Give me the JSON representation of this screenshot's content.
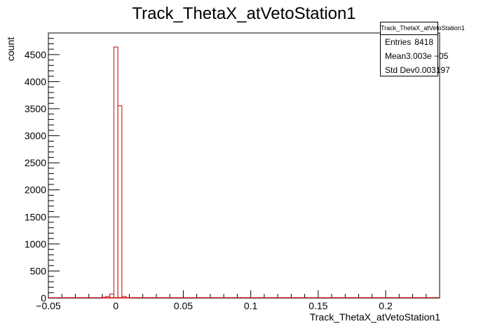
{
  "chart_data": {
    "type": "bar",
    "title": "Track_ThetaX_atVetoStation1",
    "xlabel": "Track_ThetaX_atVetoStation1",
    "ylabel": "count",
    "xlim": [
      -0.05,
      0.24
    ],
    "ylim": [
      0,
      4900
    ],
    "x_ticks": [
      -0.05,
      0,
      0.05,
      0.1,
      0.15,
      0.2
    ],
    "x_tick_labels": [
      "−0.05",
      "0",
      "0.05",
      "0.1",
      "0.15",
      "0.2"
    ],
    "y_ticks": [
      0,
      500,
      1000,
      1500,
      2000,
      2500,
      3000,
      3500,
      4000,
      4500
    ],
    "y_tick_labels": [
      "0",
      "500",
      "1000",
      "1500",
      "2000",
      "2500",
      "3000",
      "3500",
      "4000",
      "4500"
    ],
    "bins": {
      "edges": [
        -0.0105,
        -0.0075,
        -0.0045,
        -0.0015,
        0.0015,
        0.0045,
        0.0075,
        0.0105
      ],
      "counts": [
        12,
        30,
        75,
        4640,
        3555,
        30,
        8
      ]
    },
    "colors": {
      "histogram": "#cc0000",
      "axis": "#000000",
      "fill": "#ffffff"
    },
    "grid": false,
    "legend": "stats box top-right"
  },
  "stats": {
    "title": "Track_ThetaX_atVetoStation1",
    "rows": [
      {
        "label": "Entries",
        "value": "8418"
      },
      {
        "label": "Mean",
        "value": "3.003e −05"
      },
      {
        "label": "Std Dev",
        "value": "0.003197"
      }
    ]
  }
}
